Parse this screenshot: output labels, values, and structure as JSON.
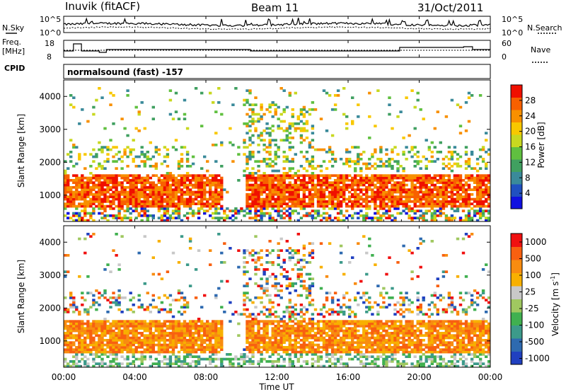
{
  "header": {
    "station": "Inuvik (fitACF)",
    "beam": "Beam 11",
    "date": "31/Oct/2011"
  },
  "noise_panel": {
    "left_label": "N.Sky",
    "right_label": "N.Search",
    "left_ticks": [
      "10^5",
      "10^0"
    ],
    "right_ticks": [
      "10^5",
      "10^0"
    ],
    "colors": {
      "sky": "#000000",
      "search": "#000000"
    }
  },
  "freq_panel": {
    "left_label_line1": "Freq.",
    "left_label_line2": "[MHz]",
    "right_label": "Nave",
    "left_ticks": [
      "18",
      "8"
    ],
    "right_ticks": [
      "60",
      "0"
    ]
  },
  "cpid": {
    "label": "CPID",
    "value": "normalsound (fast) -157"
  },
  "chart_data": [
    {
      "type": "heatmap",
      "name": "power",
      "ylabel": "Slant Range [km]",
      "yticks": [
        "1000",
        "2000",
        "3000",
        "4000"
      ],
      "ylim": [
        200,
        4500
      ],
      "xlim_hours": [
        0,
        24
      ],
      "colorbar": {
        "label": "Power [dB]",
        "ticks": [
          "4",
          "8",
          "12",
          "16",
          "20",
          "24",
          "28"
        ],
        "colors": [
          "#1010e0",
          "#2050c0",
          "#3a8a9a",
          "#40a060",
          "#60c040",
          "#c8d820",
          "#f8c800",
          "#f89000",
          "#f86000",
          "#f01000"
        ]
      }
    },
    {
      "type": "heatmap",
      "name": "velocity",
      "ylabel": "Slant Range [km]",
      "yticks": [
        "1000",
        "2000",
        "3000",
        "4000"
      ],
      "ylim": [
        200,
        4500
      ],
      "xlim_hours": [
        0,
        24
      ],
      "colorbar": {
        "label": "Velocity [m s",
        "label_sup": "-1",
        "label_close": "]",
        "ticks": [
          "1000",
          "500",
          "100",
          "25",
          "-25",
          "-100",
          "-500",
          "-1000"
        ],
        "colors": [
          "#2040c0",
          "#2e6ab0",
          "#3c9a8a",
          "#40b050",
          "#a0c860",
          "#c8c8c8",
          "#f8b000",
          "#f88c10",
          "#f86010",
          "#f01010"
        ]
      }
    }
  ],
  "xaxis": {
    "label": "Time UT",
    "ticks": [
      "00:00",
      "04:00",
      "08:00",
      "12:00",
      "16:00",
      "20:00",
      "00:00"
    ]
  }
}
